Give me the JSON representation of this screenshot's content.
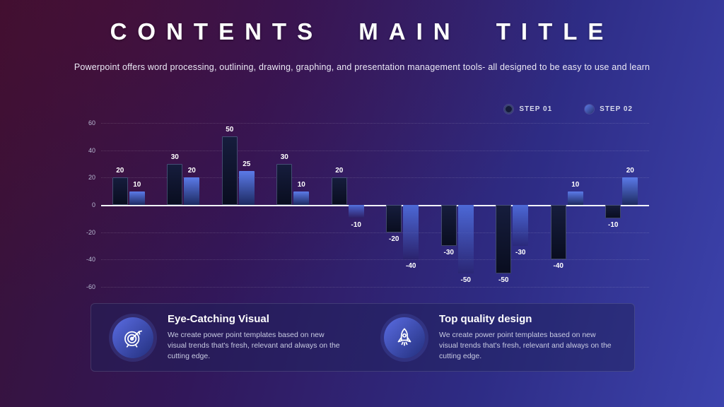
{
  "slide": {
    "title": "CONTENTS MAIN TITLE",
    "subtitle": "Powerpoint offers word processing, outlining, drawing, graphing, and presentation management tools- all designed to be easy to use and learn"
  },
  "chart_data": {
    "type": "bar",
    "series": [
      {
        "name": "STEP 01",
        "values": [
          20,
          30,
          50,
          30,
          20,
          -20,
          -30,
          -50,
          -40,
          -10
        ],
        "color": "#10162e"
      },
      {
        "name": "STEP 02",
        "values": [
          10,
          20,
          25,
          10,
          -10,
          -40,
          -50,
          -30,
          10,
          20
        ],
        "color": "#4a67d8"
      }
    ],
    "ylim": [
      -60,
      60
    ],
    "ytick_step": 20,
    "grid": true,
    "legend_position": "top-right",
    "value_labels": true
  },
  "features": [
    {
      "icon": "target-icon",
      "title": "Eye-Catching Visual",
      "description": "We create power point templates based on new visual trends that's fresh, relevant and always on the cutting edge."
    },
    {
      "icon": "rocket-icon",
      "title": "Top quality design",
      "description": "We create power point templates based on new visual trends that's fresh, relevant and always on the cutting edge."
    }
  ]
}
